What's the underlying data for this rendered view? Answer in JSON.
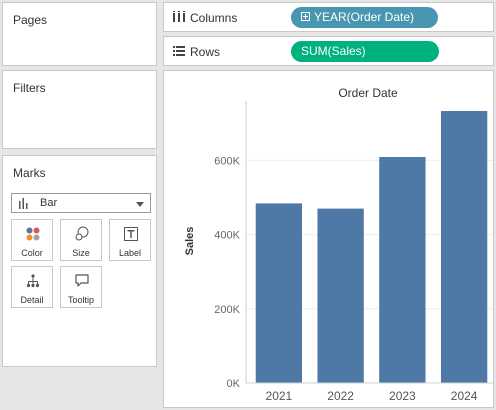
{
  "cards": {
    "pages_title": "Pages",
    "filters_title": "Filters",
    "marks_title": "Marks"
  },
  "shelves": {
    "columns_label": "Columns",
    "columns_pill": "YEAR(Order Date)",
    "rows_label": "Rows",
    "rows_pill": "SUM(Sales)"
  },
  "marks": {
    "mark_type": "Bar",
    "buttons": {
      "color": "Color",
      "size": "Size",
      "label": "Label",
      "detail": "Detail",
      "tooltip": "Tooltip"
    }
  },
  "colors": {
    "bar": "#4e79a7",
    "columns_pill": "#4996b2",
    "rows_pill": "#00b180",
    "gridline": "#eeeeee"
  },
  "chart_data": {
    "type": "bar",
    "title": "Order Date",
    "xlabel": "",
    "ylabel": "Sales",
    "categories": [
      "2021",
      "2022",
      "2023",
      "2024"
    ],
    "values": [
      484000,
      470000,
      609000,
      733000
    ],
    "ylim": [
      0,
      760000
    ],
    "yticks": [
      0,
      200000,
      400000,
      600000
    ],
    "ytick_labels": [
      "0K",
      "200K",
      "400K",
      "600K"
    ],
    "grid": true
  }
}
